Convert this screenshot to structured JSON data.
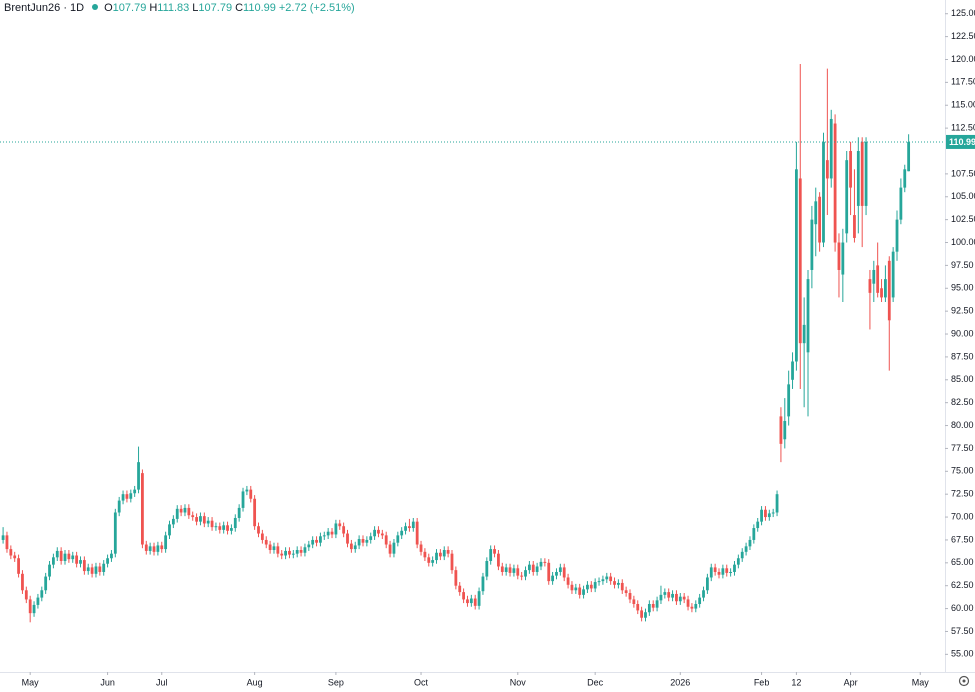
{
  "chart_data": {
    "type": "candlestick",
    "symbol": "BrentJun26 · 1D",
    "legend_values": [
      {
        "label": "O",
        "value": 107.79
      },
      {
        "label": "H",
        "value": 111.83
      },
      {
        "label": "L",
        "value": 107.79
      },
      {
        "label": "C",
        "value": 110.99
      }
    ],
    "change": "+2.72 (+2.51%)",
    "up_color": "#26a69a",
    "down_color": "#ef5350",
    "last_price": 110.99,
    "ylim": [
      53.07,
      126.5
    ],
    "xlim": [
      -0.8,
      243.4
    ],
    "yticks": [
      {
        "value": 55,
        "label": "55.00"
      },
      {
        "value": 57.5,
        "label": "57.50"
      },
      {
        "value": 60,
        "label": "60.00"
      },
      {
        "value": 62.5,
        "label": "62.50"
      },
      {
        "value": 65,
        "label": "65.00"
      },
      {
        "value": 67.5,
        "label": "67.50"
      },
      {
        "value": 70,
        "label": "70.00"
      },
      {
        "value": 72.5,
        "label": "72.50"
      },
      {
        "value": 75,
        "label": "75.00"
      },
      {
        "value": 77.5,
        "label": "77.50"
      },
      {
        "value": 80,
        "label": "80.00"
      },
      {
        "value": 82.5,
        "label": "82.50"
      },
      {
        "value": 85,
        "label": "85.00"
      },
      {
        "value": 87.5,
        "label": "87.50"
      },
      {
        "value": 90,
        "label": "90.00"
      },
      {
        "value": 92.5,
        "label": "92.50"
      },
      {
        "value": 95,
        "label": "95.00"
      },
      {
        "value": 97.5,
        "label": "97.50"
      },
      {
        "value": 100,
        "label": "100.00"
      },
      {
        "value": 102.5,
        "label": "102.50"
      },
      {
        "value": 105,
        "label": "105.00"
      },
      {
        "value": 107.5,
        "label": "107.50"
      },
      {
        "value": 112.5,
        "label": "112.50"
      },
      {
        "value": 115,
        "label": "115.00"
      },
      {
        "value": 117.5,
        "label": "117.50"
      },
      {
        "value": 120,
        "label": "120.00"
      },
      {
        "value": 122.5,
        "label": "122.50"
      },
      {
        "value": 125,
        "label": "125.00"
      }
    ],
    "xticks": [
      {
        "value": 7,
        "label": "May"
      },
      {
        "value": 27,
        "label": "Jun"
      },
      {
        "value": 41,
        "label": "Jul"
      },
      {
        "value": 65,
        "label": "Aug"
      },
      {
        "value": 86,
        "label": "Sep"
      },
      {
        "value": 108,
        "label": "Oct"
      },
      {
        "value": 133,
        "label": "Nov"
      },
      {
        "value": 153,
        "label": "Dec"
      },
      {
        "value": 175,
        "label": "2026"
      },
      {
        "value": 196,
        "label": "Feb"
      },
      {
        "value": 205,
        "label": "12"
      },
      {
        "value": 219,
        "label": "Apr"
      },
      {
        "value": 237,
        "label": "May"
      }
    ],
    "open": [
      67.5,
      68.0,
      66.5,
      65.8,
      65.5,
      63.8,
      62.0,
      61.0,
      59.5,
      60.4,
      61.2,
      62.0,
      63.5,
      64.8,
      65.6,
      66.3,
      65.2,
      66.0,
      65.4,
      65.8,
      64.9,
      65.3,
      64.1,
      64.5,
      63.8,
      64.6,
      64.0,
      64.9,
      65.5,
      66.0,
      70.5,
      71.8,
      72.5,
      72.0,
      72.6,
      73.0,
      74.8,
      67.0,
      66.3,
      66.8,
      66.2,
      66.9,
      66.5,
      68.0,
      69.2,
      69.8,
      70.9,
      70.5,
      71.0,
      70.2,
      70.0,
      69.5,
      70.1,
      69.3,
      69.6,
      68.9,
      69.0,
      68.6,
      69.1,
      68.5,
      68.8,
      69.9,
      71.0,
      72.8,
      73.0,
      72.0,
      69.0,
      68.2,
      67.5,
      67.0,
      66.4,
      66.8,
      66.0,
      65.8,
      66.3,
      65.9,
      66.0,
      66.4,
      66.1,
      66.7,
      67.0,
      67.5,
      67.2,
      67.9,
      68.0,
      68.4,
      68.1,
      69.3,
      69.0,
      68.2,
      67.1,
      66.5,
      66.9,
      67.6,
      67.2,
      67.5,
      67.9,
      68.6,
      68.2,
      68.0,
      67.0,
      66.0,
      67.2,
      68.0,
      68.5,
      69.0,
      68.8,
      69.5,
      67.0,
      66.2,
      65.6,
      65.0,
      65.3,
      66.1,
      65.7,
      66.4,
      66.0,
      64.2,
      62.5,
      61.8,
      61.0,
      60.6,
      61.1,
      60.3,
      61.9,
      63.5,
      65.2,
      66.5,
      66.0,
      64.6,
      64.0,
      64.5,
      63.9,
      64.4,
      63.6,
      63.5,
      64.2,
      64.8,
      64.0,
      64.6,
      65.1,
      65.0,
      63.0,
      63.6,
      64.0,
      64.5,
      63.4,
      62.6,
      62.0,
      62.3,
      61.5,
      62.1,
      62.6,
      62.2,
      62.9,
      63.0,
      63.2,
      63.5,
      63.0,
      62.6,
      62.8,
      62.0,
      61.7,
      61.0,
      60.5,
      59.8,
      59.0,
      59.6,
      60.5,
      60.1,
      60.9,
      61.5,
      61.8,
      61.2,
      61.6,
      60.8,
      61.3,
      61.0,
      60.2,
      60.0,
      60.5,
      61.2,
      62.0,
      63.4,
      64.5,
      64.0,
      63.7,
      64.4,
      63.9,
      64.0,
      64.8,
      65.5,
      66.2,
      66.8,
      67.5,
      68.8,
      69.5,
      70.8,
      70.0,
      70.4,
      70.5,
      81,
      78.5,
      81,
      85,
      87,
      107,
      89,
      88,
      97,
      102,
      105,
      100,
      109,
      107,
      113,
      100,
      96.5,
      101,
      110,
      103,
      104,
      111,
      104,
      96,
      95.5,
      97.5,
      95,
      94,
      98,
      94,
      99,
      102.5,
      106,
      107.79
    ],
    "high": [
      68.9,
      68.4,
      66.9,
      66.2,
      65.9,
      64.2,
      62.4,
      61.4,
      60.8,
      61.6,
      62.4,
      63.9,
      65.2,
      66.0,
      66.7,
      66.7,
      66.4,
      66.4,
      66.2,
      66.2,
      65.7,
      65.7,
      64.9,
      64.9,
      65.0,
      65.0,
      65.3,
      65.9,
      66.4,
      70.9,
      72.2,
      72.9,
      72.9,
      73.0,
      73.4,
      77.7,
      75.2,
      67.4,
      67.2,
      67.2,
      67.3,
      67.3,
      68.4,
      69.6,
      70.2,
      71.3,
      71.3,
      71.4,
      71.4,
      70.6,
      70.4,
      70.5,
      70.5,
      70.0,
      70.0,
      69.4,
      69.4,
      69.5,
      69.5,
      69.2,
      70.3,
      71.4,
      73.2,
      73.4,
      73.4,
      72.4,
      69.4,
      68.6,
      67.9,
      67.4,
      67.2,
      67.2,
      66.4,
      66.7,
      66.7,
      66.4,
      66.8,
      66.8,
      67.1,
      67.4,
      67.9,
      67.9,
      68.3,
      68.4,
      68.8,
      68.8,
      69.7,
      69.7,
      69.4,
      68.6,
      67.5,
      67.3,
      68.0,
      68.0,
      67.9,
      68.3,
      69.0,
      69.0,
      68.6,
      68.4,
      67.4,
      67.6,
      68.4,
      68.9,
      69.4,
      69.8,
      69.9,
      69.9,
      67.4,
      66.6,
      66.0,
      65.7,
      66.5,
      66.5,
      66.8,
      66.8,
      66.4,
      64.6,
      62.9,
      62.2,
      61.4,
      61.5,
      61.5,
      62.3,
      63.9,
      65.6,
      66.9,
      66.9,
      66.4,
      65.0,
      64.9,
      64.9,
      64.8,
      64.8,
      64.0,
      64.6,
      65.2,
      65.2,
      65.0,
      65.5,
      65.5,
      65.4,
      64.0,
      64.4,
      64.9,
      64.9,
      63.8,
      63.0,
      62.7,
      62.7,
      62.5,
      63.0,
      63.0,
      63.3,
      63.4,
      63.6,
      63.9,
      63.9,
      63.4,
      63.2,
      63.2,
      62.4,
      62.1,
      61.4,
      60.9,
      60.2,
      60.0,
      60.9,
      60.9,
      61.3,
      62.5,
      62.2,
      62.2,
      62.0,
      62.0,
      61.7,
      61.7,
      61.4,
      60.6,
      60.9,
      61.6,
      62.4,
      63.8,
      64.9,
      64.9,
      64.4,
      64.8,
      64.8,
      64.4,
      65.2,
      65.9,
      66.6,
      67.2,
      67.9,
      69.2,
      69.9,
      71.2,
      71.2,
      70.8,
      70.9,
      72.9,
      82,
      83,
      86,
      88,
      111,
      119.5,
      94,
      97,
      104,
      106,
      105.5,
      112,
      119,
      114.5,
      114,
      101,
      101.5,
      110,
      111,
      108,
      111.5,
      111.5,
      111.5,
      97,
      98,
      100,
      96,
      97.5,
      98.5,
      99.5,
      103.5,
      107,
      108.5,
      111.83
    ],
    "low": [
      67.1,
      66.1,
      65.4,
      65.1,
      63.4,
      61.6,
      60.6,
      58.5,
      59.1,
      60.0,
      60.8,
      61.6,
      63.1,
      64.4,
      65.2,
      64.8,
      64.8,
      65.0,
      65.0,
      64.5,
      64.5,
      63.7,
      63.7,
      63.4,
      63.4,
      63.6,
      63.6,
      64.5,
      65.1,
      65.6,
      70.1,
      71.4,
      71.6,
      71.6,
      72.2,
      72.6,
      66.6,
      65.9,
      65.9,
      65.8,
      65.8,
      66.1,
      66.1,
      67.6,
      68.8,
      69.4,
      70.1,
      70.1,
      69.8,
      69.6,
      69.1,
      69.1,
      68.9,
      68.9,
      68.5,
      68.5,
      68.2,
      68.2,
      68.1,
      68.1,
      68.4,
      69.5,
      70.6,
      72.4,
      71.6,
      68.6,
      67.8,
      67.1,
      66.6,
      66.0,
      66.0,
      65.6,
      65.4,
      65.4,
      65.5,
      65.5,
      65.6,
      65.7,
      65.7,
      66.3,
      66.6,
      66.8,
      66.8,
      67.5,
      67.6,
      67.7,
      67.7,
      68.6,
      67.8,
      66.7,
      66.1,
      66.1,
      66.5,
      66.8,
      66.8,
      67.1,
      67.5,
      67.8,
      67.6,
      66.6,
      65.6,
      65.6,
      66.8,
      67.6,
      68.1,
      68.4,
      68.4,
      66.6,
      65.8,
      65.2,
      64.6,
      64.6,
      64.9,
      65.3,
      65.3,
      65.6,
      63.8,
      62.1,
      61.4,
      60.6,
      60.2,
      60.2,
      59.9,
      59.9,
      61.5,
      63.1,
      64.8,
      65.6,
      64.2,
      63.6,
      63.6,
      63.5,
      63.5,
      63.2,
      63.1,
      63.1,
      63.8,
      63.6,
      63.6,
      64.2,
      64.6,
      62.6,
      62.6,
      63.2,
      63.6,
      63.0,
      62.2,
      61.6,
      61.6,
      61.1,
      61.1,
      61.7,
      61.8,
      61.8,
      62.5,
      62.6,
      62.8,
      62.6,
      62.2,
      62.2,
      61.6,
      61.3,
      60.6,
      60.1,
      59.4,
      58.6,
      58.6,
      59.2,
      59.7,
      59.7,
      60.5,
      61.1,
      60.8,
      60.8,
      60.4,
      60.4,
      60.6,
      59.8,
      59.6,
      59.6,
      60.1,
      60.8,
      61.6,
      63.0,
      63.6,
      63.3,
      63.3,
      63.5,
      63.5,
      63.6,
      64.4,
      65.1,
      65.8,
      66.4,
      67.1,
      68.4,
      69.1,
      69.6,
      69.6,
      70.0,
      70.1,
      76,
      77.5,
      80,
      84,
      86,
      84,
      82,
      81,
      95,
      98.5,
      99,
      99.5,
      103,
      106,
      99,
      94,
      93.5,
      100,
      103,
      100,
      101,
      99.5,
      103,
      90.5,
      93.5,
      94,
      93.5,
      93.5,
      86,
      93.5,
      98,
      102,
      105.5,
      107.79
    ],
    "close": [
      68.0,
      66.5,
      65.8,
      65.5,
      63.8,
      62.0,
      61.0,
      59.5,
      60.4,
      61.2,
      62.0,
      63.5,
      64.8,
      65.6,
      66.3,
      65.2,
      66.0,
      65.4,
      65.8,
      64.9,
      65.3,
      64.1,
      64.5,
      63.8,
      64.6,
      64.0,
      64.9,
      65.5,
      66.0,
      70.5,
      71.8,
      72.5,
      72.0,
      72.6,
      73.0,
      76.0,
      67.0,
      66.3,
      66.8,
      66.2,
      66.9,
      66.5,
      68.0,
      69.2,
      69.8,
      70.9,
      70.5,
      71.0,
      70.2,
      70.0,
      69.5,
      70.1,
      69.3,
      69.6,
      68.9,
      69.0,
      68.6,
      69.1,
      68.5,
      68.8,
      69.9,
      71.0,
      72.8,
      73.0,
      72.0,
      69.0,
      68.2,
      67.5,
      67.0,
      66.4,
      66.8,
      66.0,
      65.8,
      66.3,
      65.9,
      66.0,
      66.4,
      66.1,
      66.7,
      67.0,
      67.5,
      67.2,
      67.9,
      68.0,
      68.4,
      68.1,
      69.3,
      69.0,
      68.2,
      67.1,
      66.5,
      66.9,
      67.6,
      67.2,
      67.5,
      67.9,
      68.6,
      68.2,
      68.0,
      67.0,
      66.0,
      67.2,
      68.0,
      68.5,
      69.0,
      68.8,
      69.5,
      67.0,
      66.2,
      65.6,
      65.0,
      65.3,
      66.1,
      65.7,
      66.4,
      66.0,
      64.2,
      62.5,
      61.8,
      61.0,
      60.6,
      61.1,
      60.3,
      61.9,
      63.5,
      65.2,
      66.5,
      66.0,
      64.6,
      64.0,
      64.5,
      63.9,
      64.4,
      63.6,
      63.5,
      64.2,
      64.8,
      64.0,
      64.6,
      65.1,
      65.0,
      63.0,
      63.6,
      64.0,
      64.5,
      63.4,
      62.6,
      62.0,
      62.3,
      61.5,
      62.1,
      62.6,
      62.2,
      62.9,
      63.0,
      63.2,
      63.5,
      63.0,
      62.6,
      62.8,
      62.0,
      61.7,
      61.0,
      60.5,
      59.8,
      59.0,
      59.6,
      60.5,
      60.1,
      60.9,
      61.5,
      61.8,
      61.2,
      61.6,
      60.8,
      61.3,
      61.0,
      60.2,
      60.0,
      60.5,
      61.2,
      62.0,
      63.4,
      64.5,
      64.0,
      63.7,
      64.4,
      63.9,
      64.0,
      64.8,
      65.5,
      66.2,
      66.8,
      67.5,
      68.8,
      69.5,
      70.8,
      70.0,
      70.4,
      70.5,
      72.5,
      78,
      80.5,
      84.5,
      87,
      108,
      89,
      91,
      96,
      102.5,
      104.5,
      100,
      111,
      107,
      113.5,
      100,
      97,
      100,
      109,
      106,
      100.5,
      110,
      104,
      111,
      94.5,
      97,
      94.5,
      94,
      96,
      91.5,
      99,
      102.5,
      106,
      108,
      110.99
    ]
  }
}
